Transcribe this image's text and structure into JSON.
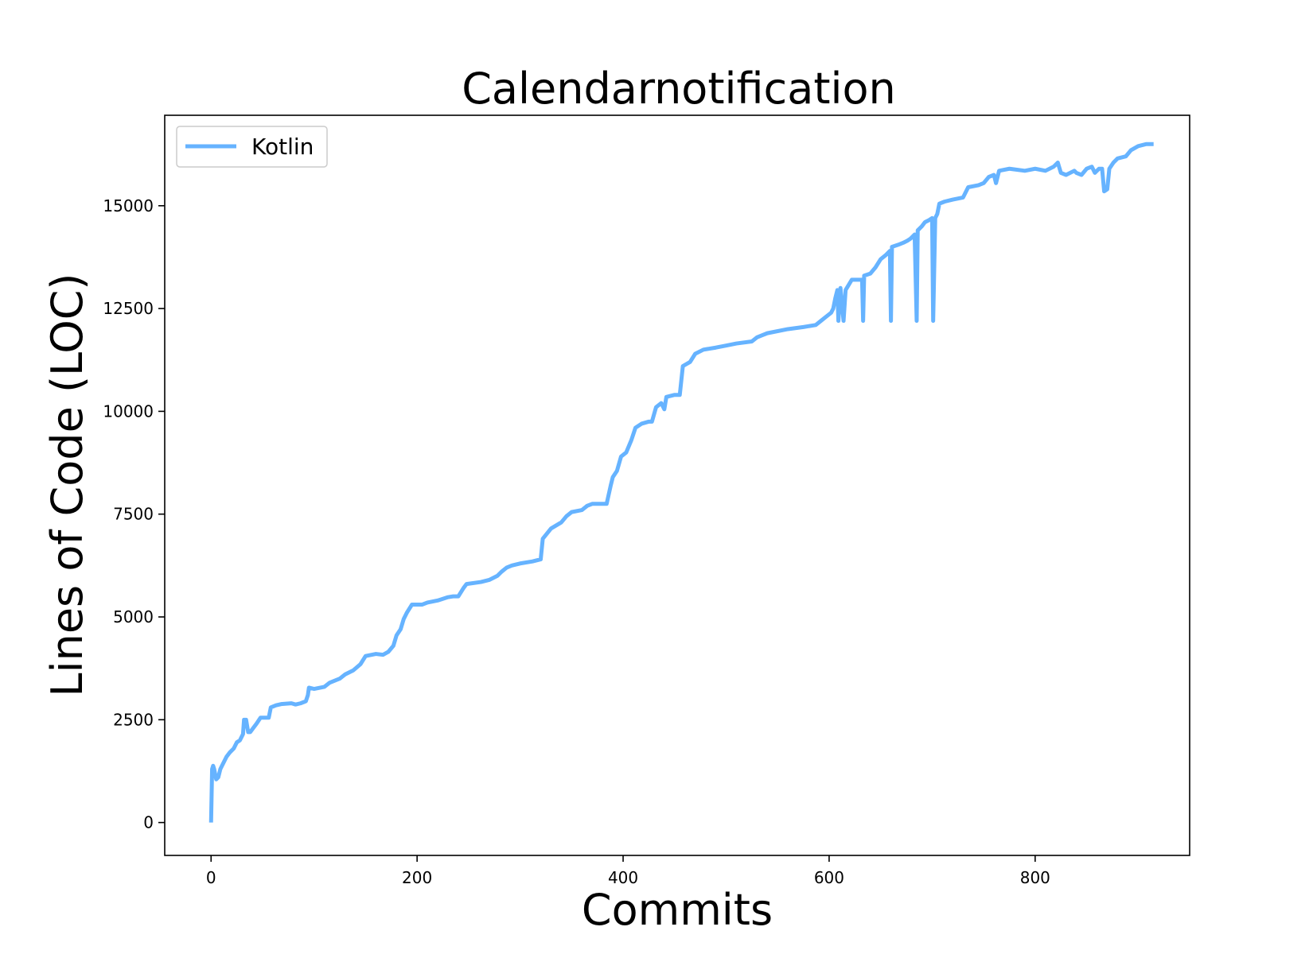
{
  "chart_data": {
    "type": "line",
    "title": "Calendarnotification",
    "xlabel": "Commits",
    "ylabel": "Lines of Code (LOC)",
    "xlim": [
      -45,
      950
    ],
    "ylim": [
      -800,
      17200
    ],
    "x_ticks": [
      0,
      200,
      400,
      600,
      800
    ],
    "y_ticks": [
      0,
      2500,
      5000,
      7500,
      10000,
      12500,
      15000
    ],
    "grid": false,
    "legend": {
      "placement": "top-left",
      "entries": [
        "Kotlin"
      ]
    },
    "colors": {
      "Kotlin": "#66b3ff"
    },
    "series": [
      {
        "name": "Kotlin",
        "points": [
          [
            0,
            0
          ],
          [
            1,
            1300
          ],
          [
            2,
            1380
          ],
          [
            3,
            1300
          ],
          [
            5,
            1050
          ],
          [
            7,
            1100
          ],
          [
            9,
            1300
          ],
          [
            12,
            1450
          ],
          [
            15,
            1600
          ],
          [
            18,
            1700
          ],
          [
            22,
            1800
          ],
          [
            25,
            1950
          ],
          [
            28,
            2000
          ],
          [
            31,
            2150
          ],
          [
            32,
            2500
          ],
          [
            34,
            2500
          ],
          [
            36,
            2200
          ],
          [
            38,
            2200
          ],
          [
            41,
            2300
          ],
          [
            44,
            2400
          ],
          [
            48,
            2550
          ],
          [
            56,
            2550
          ],
          [
            58,
            2800
          ],
          [
            63,
            2850
          ],
          [
            68,
            2880
          ],
          [
            78,
            2900
          ],
          [
            82,
            2870
          ],
          [
            87,
            2900
          ],
          [
            92,
            2950
          ],
          [
            94,
            3100
          ],
          [
            95,
            3280
          ],
          [
            100,
            3250
          ],
          [
            110,
            3300
          ],
          [
            115,
            3400
          ],
          [
            125,
            3500
          ],
          [
            130,
            3600
          ],
          [
            138,
            3700
          ],
          [
            145,
            3850
          ],
          [
            150,
            4050
          ],
          [
            160,
            4100
          ],
          [
            167,
            4080
          ],
          [
            172,
            4150
          ],
          [
            177,
            4300
          ],
          [
            180,
            4550
          ],
          [
            184,
            4700
          ],
          [
            187,
            4950
          ],
          [
            190,
            5100
          ],
          [
            195,
            5300
          ],
          [
            205,
            5300
          ],
          [
            210,
            5350
          ],
          [
            220,
            5400
          ],
          [
            230,
            5480
          ],
          [
            235,
            5500
          ],
          [
            240,
            5500
          ],
          [
            245,
            5700
          ],
          [
            248,
            5800
          ],
          [
            262,
            5850
          ],
          [
            270,
            5900
          ],
          [
            278,
            6000
          ],
          [
            282,
            6100
          ],
          [
            287,
            6200
          ],
          [
            292,
            6250
          ],
          [
            300,
            6300
          ],
          [
            312,
            6350
          ],
          [
            320,
            6400
          ],
          [
            322,
            6900
          ],
          [
            330,
            7150
          ],
          [
            340,
            7300
          ],
          [
            345,
            7450
          ],
          [
            350,
            7550
          ],
          [
            360,
            7600
          ],
          [
            365,
            7700
          ],
          [
            370,
            7750
          ],
          [
            384,
            7750
          ],
          [
            388,
            8200
          ],
          [
            390,
            8400
          ],
          [
            394,
            8550
          ],
          [
            398,
            8900
          ],
          [
            403,
            9000
          ],
          [
            408,
            9300
          ],
          [
            412,
            9600
          ],
          [
            418,
            9700
          ],
          [
            425,
            9750
          ],
          [
            428,
            9750
          ],
          [
            432,
            10100
          ],
          [
            437,
            10200
          ],
          [
            440,
            10050
          ],
          [
            442,
            10350
          ],
          [
            450,
            10400
          ],
          [
            455,
            10400
          ],
          [
            458,
            11100
          ],
          [
            465,
            11200
          ],
          [
            470,
            11400
          ],
          [
            478,
            11500
          ],
          [
            490,
            11550
          ],
          [
            500,
            11600
          ],
          [
            510,
            11650
          ],
          [
            525,
            11700
          ],
          [
            530,
            11800
          ],
          [
            535,
            11850
          ],
          [
            540,
            11900
          ],
          [
            560,
            12000
          ],
          [
            575,
            12050
          ],
          [
            587,
            12100
          ],
          [
            592,
            12200
          ],
          [
            597,
            12300
          ],
          [
            602,
            12400
          ],
          [
            604,
            12500
          ],
          [
            606,
            12750
          ],
          [
            608,
            12950
          ],
          [
            609,
            12200
          ],
          [
            611,
            13000
          ],
          [
            614,
            12200
          ],
          [
            616,
            12950
          ],
          [
            622,
            13200
          ],
          [
            632,
            13200
          ],
          [
            633,
            12200
          ],
          [
            634,
            13300
          ],
          [
            640,
            13350
          ],
          [
            645,
            13500
          ],
          [
            650,
            13700
          ],
          [
            655,
            13800
          ],
          [
            659,
            13900
          ],
          [
            660,
            12200
          ],
          [
            661,
            14000
          ],
          [
            667,
            14050
          ],
          [
            672,
            14100
          ],
          [
            676,
            14150
          ],
          [
            679,
            14200
          ],
          [
            683,
            14300
          ],
          [
            685,
            12200
          ],
          [
            686,
            14400
          ],
          [
            690,
            14500
          ],
          [
            693,
            14600
          ],
          [
            697,
            14650
          ],
          [
            700,
            14700
          ],
          [
            701,
            12200
          ],
          [
            703,
            14700
          ],
          [
            705,
            14800
          ],
          [
            707,
            15050
          ],
          [
            712,
            15100
          ],
          [
            720,
            15150
          ],
          [
            730,
            15200
          ],
          [
            735,
            15450
          ],
          [
            745,
            15500
          ],
          [
            750,
            15550
          ],
          [
            755,
            15700
          ],
          [
            760,
            15750
          ],
          [
            762,
            15550
          ],
          [
            765,
            15850
          ],
          [
            775,
            15900
          ],
          [
            790,
            15850
          ],
          [
            800,
            15900
          ],
          [
            810,
            15850
          ],
          [
            818,
            15950
          ],
          [
            822,
            16050
          ],
          [
            825,
            15800
          ],
          [
            830,
            15750
          ],
          [
            838,
            15850
          ],
          [
            840,
            15800
          ],
          [
            845,
            15750
          ],
          [
            850,
            15900
          ],
          [
            855,
            15950
          ],
          [
            858,
            15800
          ],
          [
            862,
            15900
          ],
          [
            865,
            15900
          ],
          [
            867,
            15350
          ],
          [
            870,
            15400
          ],
          [
            872,
            15900
          ],
          [
            876,
            16050
          ],
          [
            880,
            16150
          ],
          [
            888,
            16200
          ],
          [
            893,
            16350
          ],
          [
            900,
            16450
          ],
          [
            908,
            16500
          ],
          [
            915,
            16500
          ]
        ]
      }
    ]
  }
}
